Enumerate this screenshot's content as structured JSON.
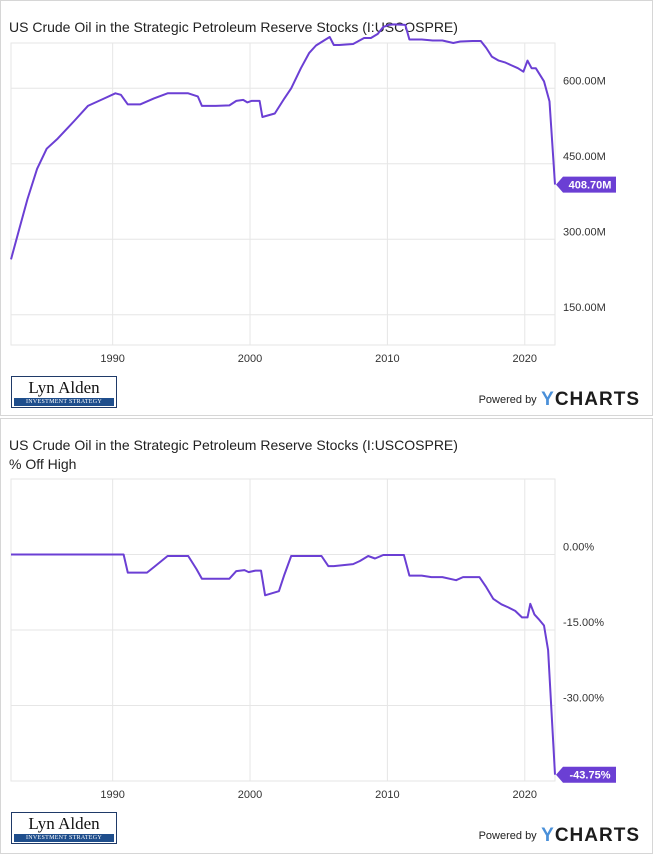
{
  "colors": {
    "line": "#6b3fd4",
    "grid": "#e6e6e6",
    "label_bg": "#6b3fd4"
  },
  "branding": {
    "logo_name": "Lyn Alden",
    "logo_sub": "INVESTMENT STRATEGY",
    "powered_by": "Powered by",
    "brand_y": "Y",
    "brand_rest": "CHARTS"
  },
  "chart_data": [
    {
      "type": "line",
      "title": "US Crude Oil in the Strategic Petroleum Reserve Stocks (I:USCOSPRE)",
      "subtitle": "",
      "xlabel": "",
      "ylabel": "",
      "xlim": [
        1982.6,
        2022.2
      ],
      "ylim": [
        90,
        690
      ],
      "x_ticks": [
        1990,
        2000,
        2010,
        2020
      ],
      "x_tick_labels": [
        "1990",
        "2000",
        "2010",
        "2020"
      ],
      "y_ticks": [
        150,
        300,
        450,
        600
      ],
      "y_tick_labels": [
        "150.00M",
        "300.00M",
        "450.00M",
        "600.00M"
      ],
      "last_value_label": "408.70M",
      "series": [
        {
          "x": [
            1982.6,
            1983.2,
            1983.8,
            1984.5,
            1985.2,
            1986,
            1987.2,
            1988.2,
            1989.4,
            1990.2,
            1990.6,
            1991.1,
            1992,
            1993,
            1994,
            1995.5,
            1996.2,
            1996.5,
            1997.5,
            1998.5,
            1999,
            1999.5,
            1999.8,
            2000.1,
            2000.7,
            2000.9,
            2001.8,
            2002.5,
            2003,
            2003.7,
            2004.3,
            2004.8,
            2005.5,
            2005.8,
            2006.1,
            2006.5,
            2007.5,
            2008.3,
            2008.8,
            2009.3,
            2009.7,
            2010.1,
            2010.5,
            2011.3,
            2011.6,
            2012.5,
            2013.3,
            2014,
            2014.8,
            2015.3,
            2016.2,
            2016.8,
            2017.2,
            2017.6,
            2018.1,
            2018.6,
            2019,
            2019.5,
            2019.9,
            2020.2,
            2020.5,
            2020.8,
            2021.4,
            2021.8,
            2022.2
          ],
          "y": [
            260,
            320,
            380,
            440,
            480,
            500,
            535,
            565,
            580,
            590,
            587,
            568,
            568,
            580,
            590,
            590,
            584,
            565,
            565,
            566,
            575,
            577,
            572,
            575,
            575,
            543,
            550,
            580,
            600,
            640,
            670,
            685,
            697,
            702,
            686,
            686,
            688,
            700,
            700,
            708,
            722,
            726,
            727,
            726,
            697,
            697,
            695,
            695,
            690,
            693,
            694,
            694,
            680,
            663,
            655,
            651,
            646,
            640,
            633,
            655,
            640,
            640,
            614,
            574,
            408.7
          ]
        }
      ]
    },
    {
      "type": "line",
      "title": "US Crude Oil in the Strategic Petroleum Reserve Stocks (I:USCOSPRE)",
      "subtitle": "% Off High",
      "xlabel": "",
      "ylabel": "",
      "xlim": [
        1982.6,
        2022.2
      ],
      "ylim": [
        -45,
        15
      ],
      "x_ticks": [
        1990,
        2000,
        2010,
        2020
      ],
      "x_tick_labels": [
        "1990",
        "2000",
        "2010",
        "2020"
      ],
      "y_ticks": [
        0,
        -15,
        -30
      ],
      "y_tick_labels": [
        "0.00%",
        "-15.00%",
        "-30.00%"
      ],
      "last_value_label": "-43.75%",
      "series": [
        {
          "x": [
            1982.6,
            1985,
            1990.8,
            1991.1,
            1992.5,
            1993,
            1994,
            1995.5,
            1996.1,
            1996.5,
            1998.5,
            1999,
            1999.6,
            1999.9,
            2000.4,
            2000.8,
            2001.1,
            2002.1,
            2002.5,
            2003,
            2003.5,
            2005.2,
            2005.7,
            2006.1,
            2007.5,
            2008,
            2008.6,
            2009.1,
            2009.7,
            2010,
            2011.2,
            2011.6,
            2012.5,
            2013.2,
            2014,
            2015,
            2015.5,
            2016.7,
            2017.2,
            2017.7,
            2018.3,
            2018.8,
            2019.3,
            2019.8,
            2020.2,
            2020.4,
            2020.7,
            2021,
            2021.4,
            2021.7,
            2022.2
          ],
          "y": [
            0,
            0,
            0,
            -3.6,
            -3.6,
            -2.5,
            -0.3,
            -0.3,
            -2.9,
            -4.8,
            -4.8,
            -3.3,
            -3.1,
            -3.5,
            -3.2,
            -3.2,
            -8.1,
            -7.3,
            -4,
            -0.3,
            -0.3,
            -0.3,
            -2.3,
            -2.3,
            -1.9,
            -1.3,
            -0.3,
            -0.8,
            -0.1,
            -0.1,
            -0.1,
            -4.2,
            -4.2,
            -4.5,
            -4.5,
            -5.1,
            -4.5,
            -4.5,
            -6.5,
            -8.8,
            -9.9,
            -10.5,
            -11.2,
            -12.5,
            -12.5,
            -9.8,
            -11.9,
            -12.8,
            -14.1,
            -19,
            -43.75
          ]
        }
      ]
    }
  ]
}
